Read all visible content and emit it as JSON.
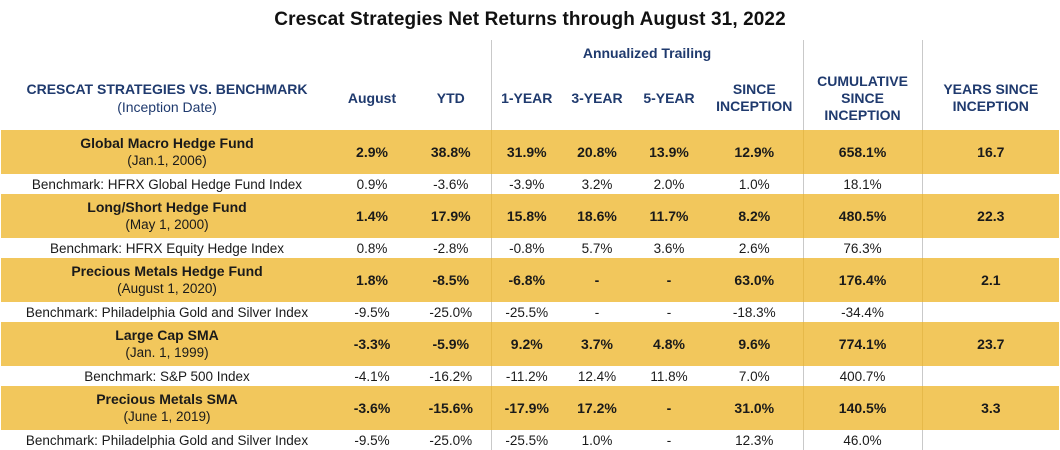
{
  "title": "Crescat Strategies Net Returns through August 31, 2022",
  "header": {
    "annualized_label": "Annualized Trailing",
    "strategy_label": "CRESCAT STRATEGIES VS. BENCHMARK",
    "inception_label": "(Inception Date)",
    "columns": {
      "august": "August",
      "ytd": "YTD",
      "one_year": "1-YEAR",
      "three_year": "3-YEAR",
      "five_year": "5-YEAR",
      "since_inception_1": "SINCE",
      "since_inception_2": "INCEPTION",
      "cumulative_1": "CUMULATIVE",
      "cumulative_2": "SINCE",
      "cumulative_3": "INCEPTION",
      "years_1": "YEARS SINCE",
      "years_2": "INCEPTION"
    }
  },
  "colors": {
    "fund_row_bg": "#f2c75c",
    "header_text": "#1f3a6e"
  },
  "rows": [
    {
      "fund": {
        "name": "Global Macro Hedge Fund",
        "date": "(Jan.1, 2006)",
        "august": "2.9%",
        "ytd": "38.8%",
        "y1": "31.9%",
        "y3": "20.8%",
        "y5": "13.9%",
        "since": "12.9%",
        "cumulative": "658.1%",
        "years": "16.7"
      },
      "benchmark": {
        "name": "Benchmark: HFRX Global Hedge Fund Index",
        "august": "0.9%",
        "ytd": "-3.6%",
        "y1": "-3.9%",
        "y3": "3.2%",
        "y5": "2.0%",
        "since": "1.0%",
        "cumulative": "18.1%"
      }
    },
    {
      "fund": {
        "name": "Long/Short Hedge Fund",
        "date": "(May 1, 2000)",
        "august": "1.4%",
        "ytd": "17.9%",
        "y1": "15.8%",
        "y3": "18.6%",
        "y5": "11.7%",
        "since": "8.2%",
        "cumulative": "480.5%",
        "years": "22.3"
      },
      "benchmark": {
        "name": "Benchmark: HFRX Equity Hedge Index",
        "august": "0.8%",
        "ytd": "-2.8%",
        "y1": "-0.8%",
        "y3": "5.7%",
        "y5": "3.6%",
        "since": "2.6%",
        "cumulative": "76.3%"
      }
    },
    {
      "fund": {
        "name": "Precious Metals Hedge Fund",
        "date": "(August 1, 2020)",
        "august": "1.8%",
        "ytd": "-8.5%",
        "y1": "-6.8%",
        "y3": "-",
        "y5": "-",
        "since": "63.0%",
        "cumulative": "176.4%",
        "years": "2.1"
      },
      "benchmark": {
        "name": "Benchmark: Philadelphia Gold and Silver Index",
        "august": "-9.5%",
        "ytd": "-25.0%",
        "y1": "-25.5%",
        "y3": "-",
        "y5": "-",
        "since": "-18.3%",
        "cumulative": "-34.4%"
      }
    },
    {
      "fund": {
        "name": "Large Cap SMA",
        "date": "(Jan. 1, 1999)",
        "august": "-3.3%",
        "ytd": "-5.9%",
        "y1": "9.2%",
        "y3": "3.7%",
        "y5": "4.8%",
        "since": "9.6%",
        "cumulative": "774.1%",
        "years": "23.7"
      },
      "benchmark": {
        "name": "Benchmark: S&P 500 Index",
        "august": "-4.1%",
        "ytd": "-16.2%",
        "y1": "-11.2%",
        "y3": "12.4%",
        "y5": "11.8%",
        "since": "7.0%",
        "cumulative": "400.7%"
      }
    },
    {
      "fund": {
        "name": "Precious Metals SMA",
        "date": "(June 1, 2019)",
        "august": "-3.6%",
        "ytd": "-15.6%",
        "y1": "-17.9%",
        "y3": "17.2%",
        "y5": "-",
        "since": "31.0%",
        "cumulative": "140.5%",
        "years": "3.3"
      },
      "benchmark": {
        "name": "Benchmark: Philadelphia Gold and Silver Index",
        "august": "-9.5%",
        "ytd": "-25.0%",
        "y1": "-25.5%",
        "y3": "1.0%",
        "y5": "-",
        "since": "12.3%",
        "cumulative": "46.0%"
      }
    }
  ]
}
